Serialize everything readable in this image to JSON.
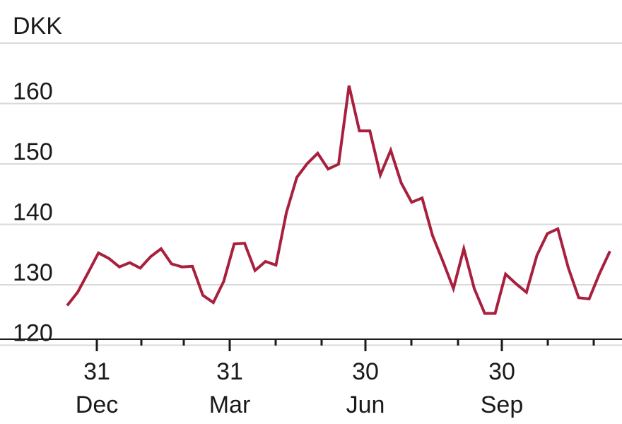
{
  "chart_data": {
    "type": "line",
    "unit_label": "DKK",
    "y_ticks": [
      "120",
      "130",
      "140",
      "150",
      "160"
    ],
    "ylim": [
      118,
      170
    ],
    "x_tick_labels": [
      {
        "day": "31",
        "month": "Dec"
      },
      {
        "day": "31",
        "month": "Mar"
      },
      {
        "day": "30",
        "month": "Jun"
      },
      {
        "day": "30",
        "month": "Sep"
      }
    ],
    "grid": true,
    "series": [
      {
        "color": "#a8203e",
        "values": [
          125.4,
          127.6,
          130.8,
          134.1,
          133.2,
          131.8,
          132.5,
          131.6,
          133.5,
          134.8,
          132.3,
          131.8,
          131.9,
          127.1,
          125.9,
          129.4,
          135.6,
          135.7,
          131.2,
          132.7,
          132.1,
          140.8,
          146.6,
          148.9,
          150.6,
          148.0,
          148.8,
          161.8,
          154.3,
          154.3,
          147.0,
          151.1,
          145.7,
          142.5,
          143.2,
          137.0,
          132.7,
          128.2,
          134.8,
          128.2,
          124.1,
          124.1,
          130.6,
          129.0,
          127.6,
          133.7,
          137.3,
          138.1,
          131.7,
          126.7,
          126.5,
          130.7,
          134.4
        ]
      }
    ]
  }
}
